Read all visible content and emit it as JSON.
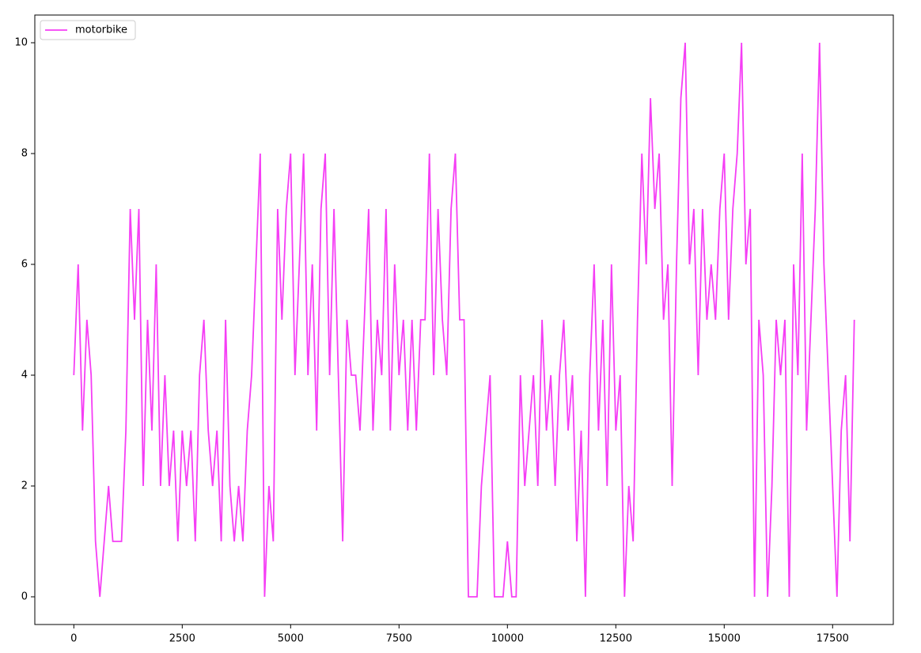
{
  "chart_data": {
    "type": "line",
    "x": [
      0,
      100,
      200,
      300,
      400,
      500,
      600,
      700,
      800,
      900,
      1000,
      1100,
      1200,
      1300,
      1400,
      1500,
      1600,
      1700,
      1800,
      1900,
      2000,
      2100,
      2200,
      2300,
      2400,
      2500,
      2600,
      2700,
      2800,
      2900,
      3000,
      3100,
      3200,
      3300,
      3400,
      3500,
      3600,
      3700,
      3800,
      3900,
      4000,
      4100,
      4200,
      4300,
      4400,
      4500,
      4600,
      4700,
      4800,
      4900,
      5000,
      5100,
      5200,
      5300,
      5400,
      5500,
      5600,
      5700,
      5800,
      5900,
      6000,
      6100,
      6200,
      6300,
      6400,
      6500,
      6600,
      6700,
      6800,
      6900,
      7000,
      7100,
      7200,
      7300,
      7400,
      7500,
      7600,
      7700,
      7800,
      7900,
      8000,
      8100,
      8200,
      8300,
      8400,
      8500,
      8600,
      8700,
      8800,
      8900,
      9000,
      9100,
      9200,
      9300,
      9400,
      9500,
      9600,
      9700,
      9800,
      9900,
      10000,
      10100,
      10200,
      10300,
      10400,
      10500,
      10600,
      10700,
      10800,
      10900,
      11000,
      11100,
      11200,
      11300,
      11400,
      11500,
      11600,
      11700,
      11800,
      11900,
      12000,
      12100,
      12200,
      12300,
      12400,
      12500,
      12600,
      12700,
      12800,
      12900,
      13000,
      13100,
      13200,
      13300,
      13400,
      13500,
      13600,
      13700,
      13800,
      13900,
      14000,
      14100,
      14200,
      14300,
      14400,
      14500,
      14600,
      14700,
      14800,
      14900,
      15000,
      15100,
      15200,
      15300,
      15400,
      15500,
      15600,
      15700,
      15800,
      15900,
      16000,
      16100,
      16200,
      16300,
      16400,
      16500,
      16600,
      16700,
      16800,
      16900,
      17000,
      17100,
      17200,
      17300,
      17400,
      17500,
      17600,
      17700,
      17800,
      17900,
      18000
    ],
    "series": [
      {
        "name": "motorbike",
        "color": "#f53ef5",
        "values": [
          4,
          6,
          3,
          5,
          4,
          1,
          0,
          1,
          2,
          1,
          1,
          1,
          3,
          7,
          5,
          7,
          2,
          5,
          3,
          6,
          2,
          4,
          2,
          3,
          1,
          3,
          2,
          3,
          1,
          4,
          5,
          3,
          2,
          3,
          1,
          5,
          2,
          1,
          2,
          1,
          3,
          4,
          6,
          8,
          0,
          2,
          1,
          7,
          5,
          7,
          8,
          4,
          6,
          8,
          4,
          6,
          3,
          7,
          8,
          4,
          7,
          4,
          1,
          5,
          4,
          4,
          3,
          5,
          7,
          3,
          5,
          4,
          7,
          3,
          6,
          4,
          5,
          3,
          5,
          3,
          5,
          5,
          8,
          4,
          7,
          5,
          4,
          7,
          8,
          5,
          5,
          0,
          0,
          0,
          2,
          3,
          4,
          0,
          0,
          0,
          1,
          0,
          0,
          4,
          2,
          3,
          4,
          2,
          5,
          3,
          4,
          2,
          4,
          5,
          3,
          4,
          1,
          3,
          0,
          4,
          6,
          3,
          5,
          2,
          6,
          3,
          4,
          0,
          2,
          1,
          5,
          8,
          6,
          9,
          7,
          8,
          5,
          6,
          2,
          6,
          9,
          10,
          6,
          7,
          4,
          7,
          5,
          6,
          5,
          7,
          8,
          5,
          7,
          8,
          10,
          6,
          7,
          0,
          5,
          4,
          0,
          2,
          5,
          4,
          5,
          0,
          6,
          4,
          8,
          3,
          5,
          7,
          10,
          6,
          4,
          2,
          0,
          3,
          4,
          1,
          5
        ]
      }
    ],
    "xlim": [
      -900,
      18900
    ],
    "ylim": [
      -0.5,
      10.5
    ],
    "xticks": [
      0,
      2500,
      5000,
      7500,
      10000,
      12500,
      15000,
      17500
    ],
    "yticks": [
      0,
      2,
      4,
      6,
      8,
      10
    ],
    "legend": "upper left",
    "grid": false
  }
}
